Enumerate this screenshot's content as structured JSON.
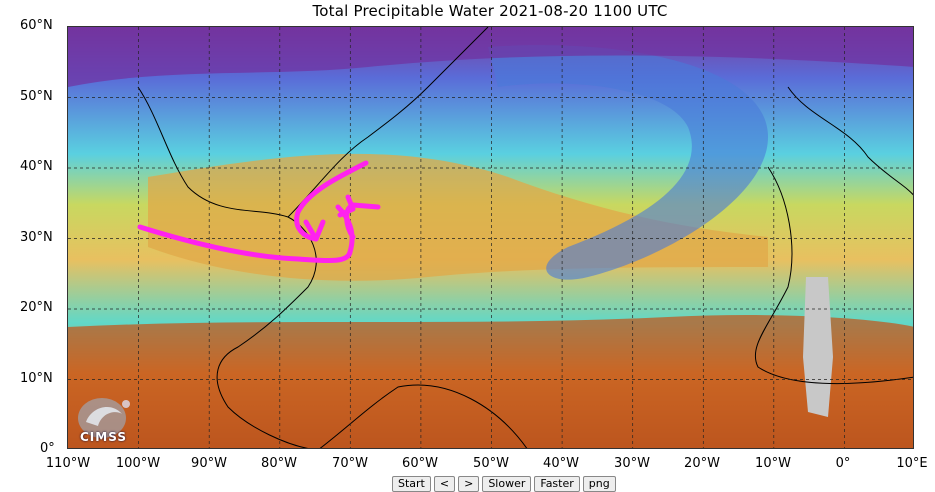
{
  "title": "Total Precipitable Water  2021-08-20 1100 UTC",
  "lat_labels": [
    "60°N",
    "50°N",
    "40°N",
    "30°N",
    "20°N",
    "10°N",
    "0°"
  ],
  "lon_labels": [
    "110°W",
    "100°W",
    "90°W",
    "80°W",
    "70°W",
    "60°W",
    "50°W",
    "40°W",
    "30°W",
    "20°W",
    "10°W",
    "0°",
    "10°E"
  ],
  "logo": {
    "text": "CIMSS"
  },
  "controls": {
    "start": "Start",
    "prev": "<",
    "next": ">",
    "slower": "Slower",
    "faster": "Faster",
    "png": "png"
  },
  "colors": {
    "dry": "#6b2d8f",
    "low": "#4aa3e0",
    "mid": "#5fe0b0",
    "moist": "#e8a040",
    "wet": "#a0401a",
    "annotation": "#ff22ee"
  },
  "map_extent": {
    "lon_min": -110,
    "lon_max": 10,
    "lat_min": 0,
    "lat_max": 60
  }
}
